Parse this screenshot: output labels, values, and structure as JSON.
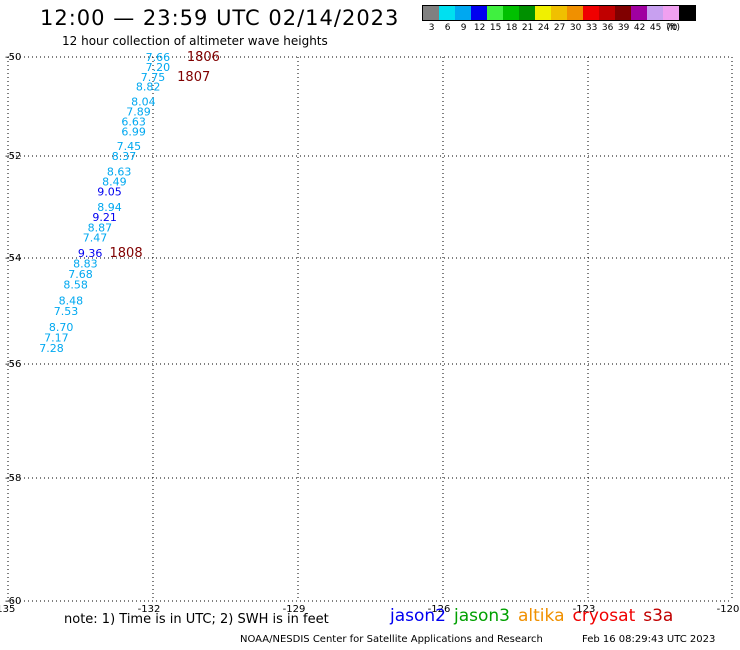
{
  "header": {
    "title": "12:00 — 23:59 UTC 02/14/2023",
    "subtitle": "12 hour collection of altimeter wave heights"
  },
  "legend": {
    "unit": "(ft)",
    "bins": [
      {
        "label": "3",
        "color": "#808080"
      },
      {
        "label": "6",
        "color": "#00e0f0"
      },
      {
        "label": "9",
        "color": "#00a8f0"
      },
      {
        "label": "12",
        "color": "#0000f0"
      },
      {
        "label": "15",
        "color": "#40f040"
      },
      {
        "label": "18",
        "color": "#00c000"
      },
      {
        "label": "21",
        "color": "#009000"
      },
      {
        "label": "24",
        "color": "#f0f000"
      },
      {
        "label": "27",
        "color": "#f0c000"
      },
      {
        "label": "30",
        "color": "#f09000"
      },
      {
        "label": "33",
        "color": "#f00000"
      },
      {
        "label": "36",
        "color": "#c00000"
      },
      {
        "label": "39",
        "color": "#800000"
      },
      {
        "label": "42",
        "color": "#a000a0"
      },
      {
        "label": "45",
        "color": "#c8a0f0"
      },
      {
        "label": "70",
        "color": "#f0a0f0"
      },
      {
        "label": "",
        "color": "#000000"
      }
    ]
  },
  "map": {
    "lat_labels": [
      "-50",
      "-52",
      "-54",
      "-56",
      "-58",
      "-60"
    ],
    "lon_labels": [
      "-135",
      "-132",
      "-129",
      "-126",
      "-123",
      "-120"
    ],
    "lat_range": [
      -50,
      -60
    ],
    "lon_range": [
      -135,
      -120
    ]
  },
  "observations": [
    {
      "text": "7.66",
      "lon": -131.9,
      "lat": -50.0,
      "color": "#00a8f0"
    },
    {
      "text": "7.20",
      "lon": -131.9,
      "lat": -50.2,
      "color": "#00a8f0"
    },
    {
      "text": "7.75",
      "lon": -132.0,
      "lat": -50.4,
      "color": "#00a8f0"
    },
    {
      "text": "8.82",
      "lon": -132.1,
      "lat": -50.6,
      "color": "#00a8f0"
    },
    {
      "text": "8.04",
      "lon": -132.2,
      "lat": -50.9,
      "color": "#00a8f0"
    },
    {
      "text": "7.89",
      "lon": -132.3,
      "lat": -51.1,
      "color": "#00a8f0"
    },
    {
      "text": "6.63",
      "lon": -132.4,
      "lat": -51.3,
      "color": "#00a8f0"
    },
    {
      "text": "6.99",
      "lon": -132.4,
      "lat": -51.5,
      "color": "#00a8f0"
    },
    {
      "text": "7.45",
      "lon": -132.5,
      "lat": -51.8,
      "color": "#00a8f0"
    },
    {
      "text": "8.37",
      "lon": -132.6,
      "lat": -52.0,
      "color": "#00a8f0"
    },
    {
      "text": "8.63",
      "lon": -132.7,
      "lat": -52.3,
      "color": "#00a8f0"
    },
    {
      "text": "8.49",
      "lon": -132.8,
      "lat": -52.5,
      "color": "#00a8f0"
    },
    {
      "text": "9.05",
      "lon": -132.9,
      "lat": -52.7,
      "color": "#0000f0"
    },
    {
      "text": "8.94",
      "lon": -132.9,
      "lat": -53.0,
      "color": "#00a8f0"
    },
    {
      "text": "9.21",
      "lon": -133.0,
      "lat": -53.2,
      "color": "#0000f0"
    },
    {
      "text": "8.87",
      "lon": -133.1,
      "lat": -53.4,
      "color": "#00a8f0"
    },
    {
      "text": "7.47",
      "lon": -133.2,
      "lat": -53.6,
      "color": "#00a8f0"
    },
    {
      "text": "9.36",
      "lon": -133.3,
      "lat": -53.9,
      "color": "#0000f0"
    },
    {
      "text": "8.83",
      "lon": -133.4,
      "lat": -54.1,
      "color": "#00a8f0"
    },
    {
      "text": "7.68",
      "lon": -133.5,
      "lat": -54.3,
      "color": "#00a8f0"
    },
    {
      "text": "8.58",
      "lon": -133.6,
      "lat": -54.5,
      "color": "#00a8f0"
    },
    {
      "text": "8.48",
      "lon": -133.7,
      "lat": -54.8,
      "color": "#00a8f0"
    },
    {
      "text": "7.53",
      "lon": -133.8,
      "lat": -55.0,
      "color": "#00a8f0"
    },
    {
      "text": "8.70",
      "lon": -133.9,
      "lat": -55.3,
      "color": "#00a8f0"
    },
    {
      "text": "7.17",
      "lon": -134.0,
      "lat": -55.5,
      "color": "#00a8f0"
    },
    {
      "text": "7.28",
      "lon": -134.1,
      "lat": -55.7,
      "color": "#00a8f0"
    }
  ],
  "time_labels": [
    {
      "text": "1806",
      "lon": -131.3,
      "lat": -50.0
    },
    {
      "text": "1807",
      "lon": -131.5,
      "lat": -50.4
    },
    {
      "text": "1808",
      "lon": -132.9,
      "lat": -53.9
    }
  ],
  "time_label_color": "#800000",
  "footer": {
    "note": "note:  1) Time is in UTC;  2) SWH is in feet",
    "satellites": [
      {
        "name": "jason2",
        "color": "#0000f0"
      },
      {
        "name": "jason3",
        "color": "#00a000"
      },
      {
        "name": "altika",
        "color": "#f09000"
      },
      {
        "name": "cryosat",
        "color": "#f00000"
      },
      {
        "name": "s3a",
        "color": "#c00000"
      }
    ],
    "credit": "NOAA/NESDIS Center for Satellite Applications and Research",
    "timestamp": "Feb 16 08:29:43 UTC 2023"
  }
}
